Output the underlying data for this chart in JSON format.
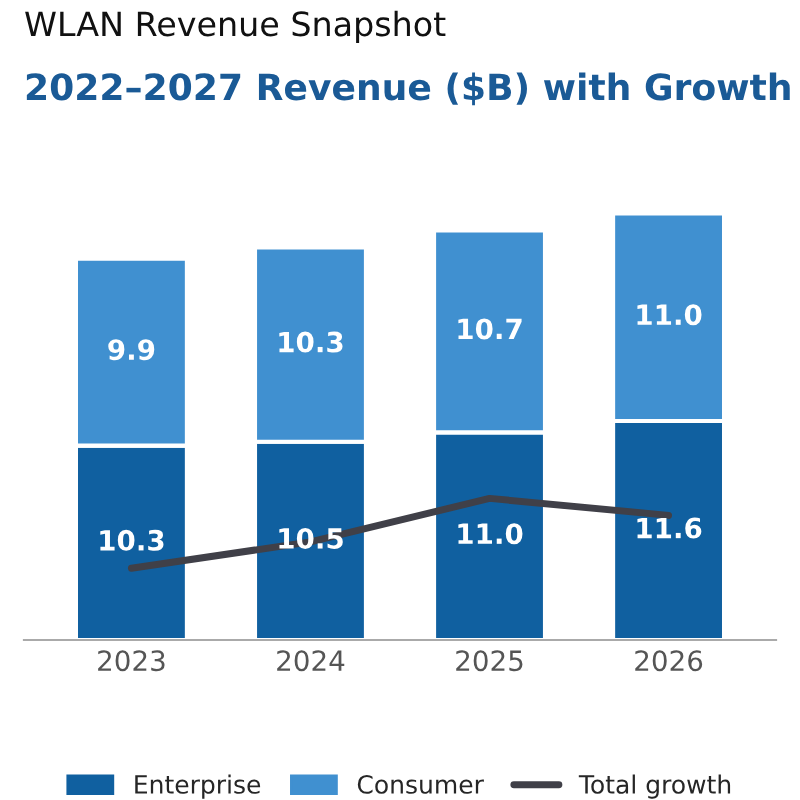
{
  "chart_data": {
    "type": "bar",
    "title": "WLAN Revenue Snapshot",
    "subtitle": "2022–2027 Revenue ($B) with Growth",
    "categories": [
      "2023",
      "2024",
      "2025",
      "2026"
    ],
    "stacked": true,
    "legend": "bottom",
    "tick_labels": "x",
    "grid": false,
    "series": [
      {
        "name": "Enterprise",
        "color": "#1060a0",
        "values": [
          10.3,
          10.5,
          11.0,
          11.6
        ],
        "value_labels": [
          "10.3",
          "10.5",
          "11.0",
          "11.6"
        ]
      },
      {
        "name": "Consumer",
        "color": "#4090d0",
        "values": [
          9.9,
          10.3,
          10.7,
          11.0
        ],
        "value_labels": [
          "9.9",
          "10.3",
          "10.7",
          "11.0"
        ]
      },
      {
        "name": "Total growth",
        "type": "line",
        "color": "#404048",
        "values": [
          3.8,
          5.2,
          7.5,
          6.6
        ]
      }
    ]
  }
}
